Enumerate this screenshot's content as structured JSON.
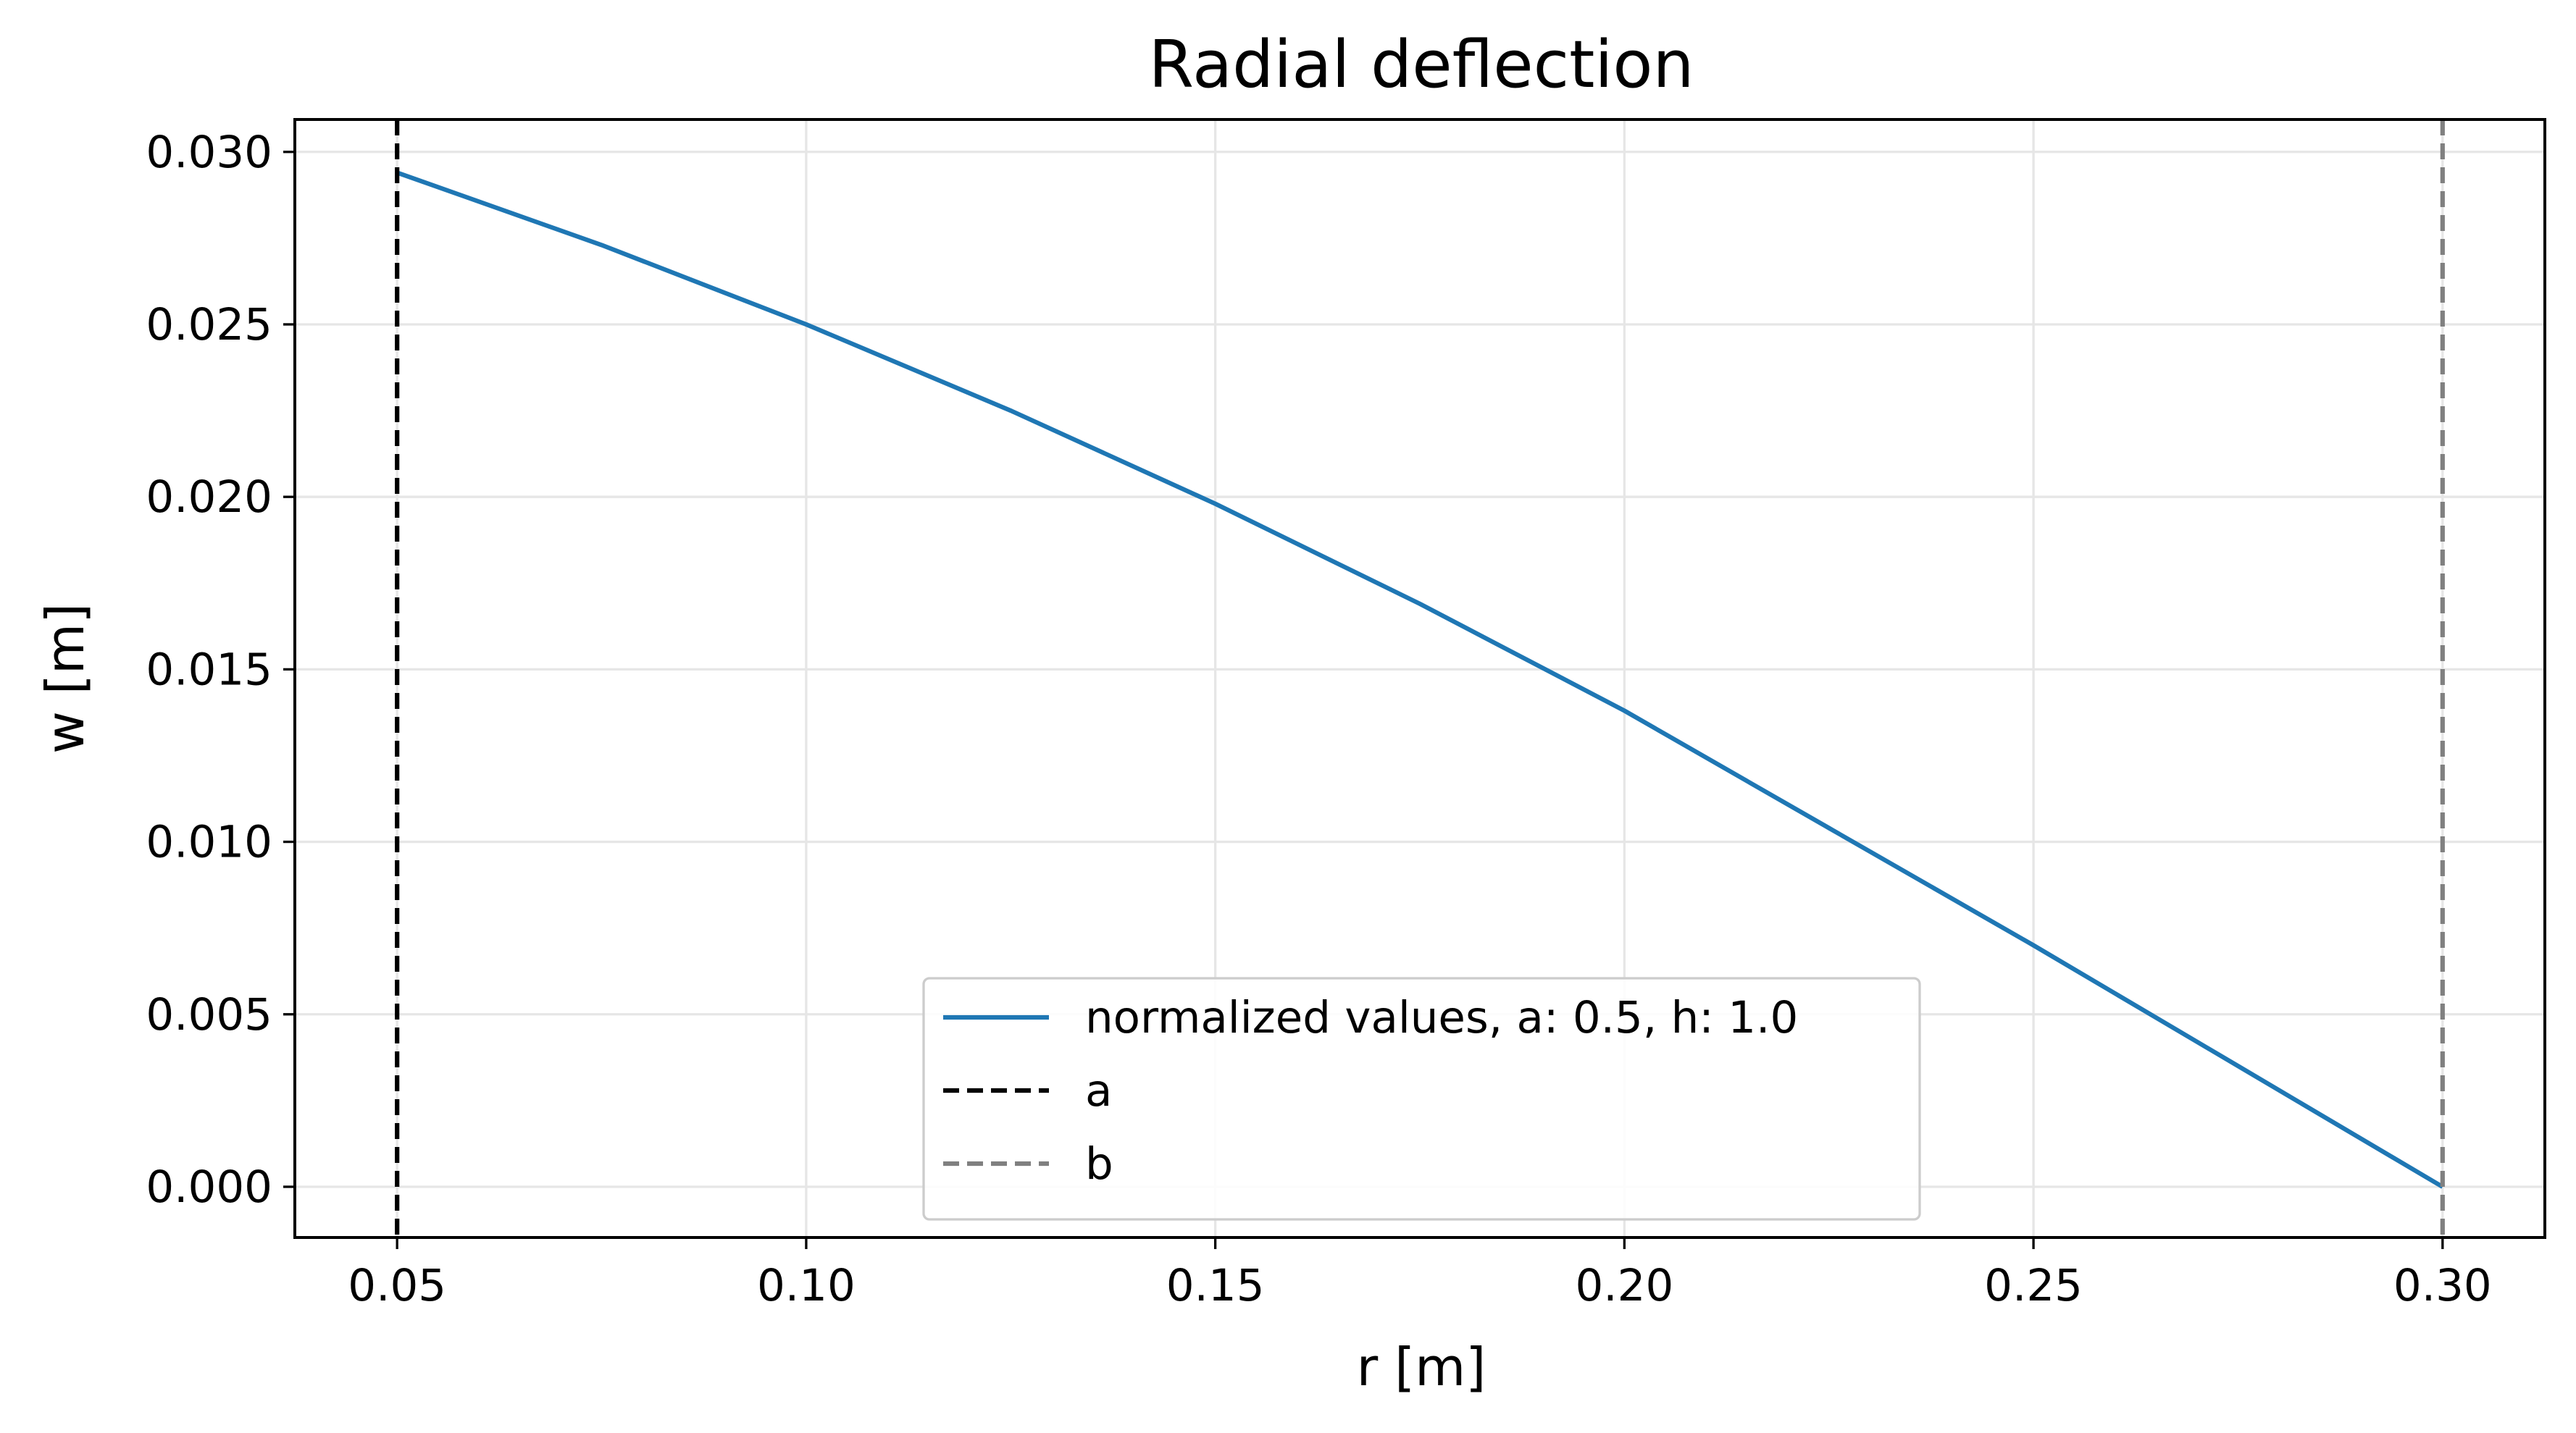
{
  "chart_data": {
    "type": "line",
    "title": "Radial deflection",
    "xlabel": "r [m]",
    "ylabel": "w [m]",
    "xlim": [
      0.0375,
      0.3125
    ],
    "ylim": [
      -0.00147,
      0.03094
    ],
    "xticks": [
      0.05,
      0.1,
      0.15,
      0.2,
      0.25,
      0.3
    ],
    "xtick_labels": [
      "0.05",
      "0.10",
      "0.15",
      "0.20",
      "0.25",
      "0.30"
    ],
    "yticks": [
      0.0,
      0.005,
      0.01,
      0.015,
      0.02,
      0.025,
      0.03
    ],
    "ytick_labels": [
      "0.000",
      "0.005",
      "0.010",
      "0.015",
      "0.020",
      "0.025",
      "0.030"
    ],
    "grid": true,
    "legend_position": "lower-center",
    "series": [
      {
        "name": "normalized values, a: 0.5, h: 1.0",
        "color": "#1f77b4",
        "style": "solid",
        "x": [
          0.05,
          0.075,
          0.1,
          0.125,
          0.15,
          0.175,
          0.2,
          0.225,
          0.25,
          0.275,
          0.3
        ],
        "y": [
          0.0294,
          0.0273,
          0.025,
          0.0225,
          0.0198,
          0.0169,
          0.0138,
          0.0104,
          0.007,
          0.0035,
          0.0
        ]
      }
    ],
    "vlines": [
      {
        "name": "a",
        "x": 0.05,
        "color": "#000000",
        "style": "dashed"
      },
      {
        "name": "b",
        "x": 0.3,
        "color": "#808080",
        "style": "dashed"
      }
    ]
  }
}
